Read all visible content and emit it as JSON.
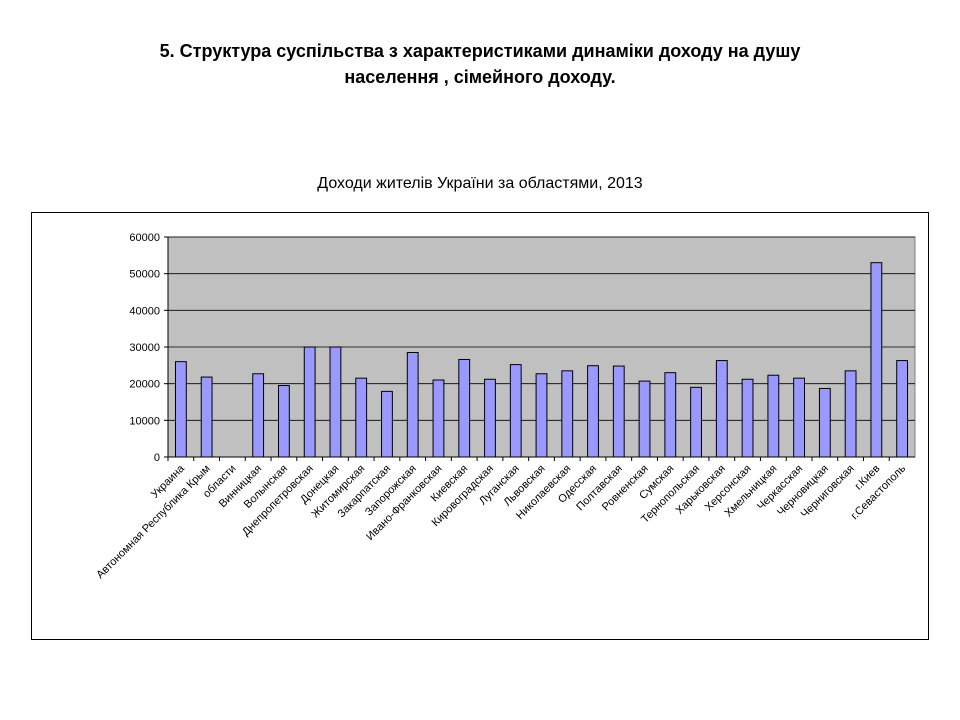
{
  "slide": {
    "title_line1": "5. Структура суспільства з характеристиками динаміки доходу на душу",
    "title_line2": "населення , сімейного доходу."
  },
  "chart_data": {
    "type": "bar",
    "title": "Доходи жителів України за областями, 2013",
    "xlabel": "",
    "ylabel": "",
    "ylim": [
      0,
      60000
    ],
    "yticks": [
      0,
      10000,
      20000,
      30000,
      40000,
      50000,
      60000
    ],
    "grid": true,
    "legend": "none",
    "colors": {
      "bar": "#9999ff",
      "bar_border": "#000000",
      "plot_bg": "#c0c0c0",
      "grid": "#000000"
    },
    "categories": [
      "Украина",
      "Автономная Республика Крым",
      "области",
      "Винницкая",
      "Волынская",
      "Днепропетровская",
      "Донецкая",
      "Житомирская",
      "Закарпатская",
      "Запорожская",
      "Ивано-Франковская",
      "Киевская",
      "Кировоградская",
      "Луганская",
      "Львовская",
      "Николаевская",
      "Одесская",
      "Полтавская",
      "Ровненская",
      "Сумская",
      "Тернопольская",
      "Харьковская",
      "Херсонская",
      "Хмельницкая",
      "Черкасская",
      "Черновицкая",
      "Черниговская",
      "г.Киев",
      "г.Севастополь"
    ],
    "values": [
      26000,
      21800,
      null,
      22700,
      19500,
      30000,
      30000,
      21500,
      17900,
      28500,
      21000,
      26600,
      21200,
      25200,
      22700,
      23500,
      24900,
      24800,
      20700,
      23000,
      19000,
      26300,
      21200,
      22300,
      21500,
      18700,
      23500,
      53000,
      26300
    ]
  }
}
